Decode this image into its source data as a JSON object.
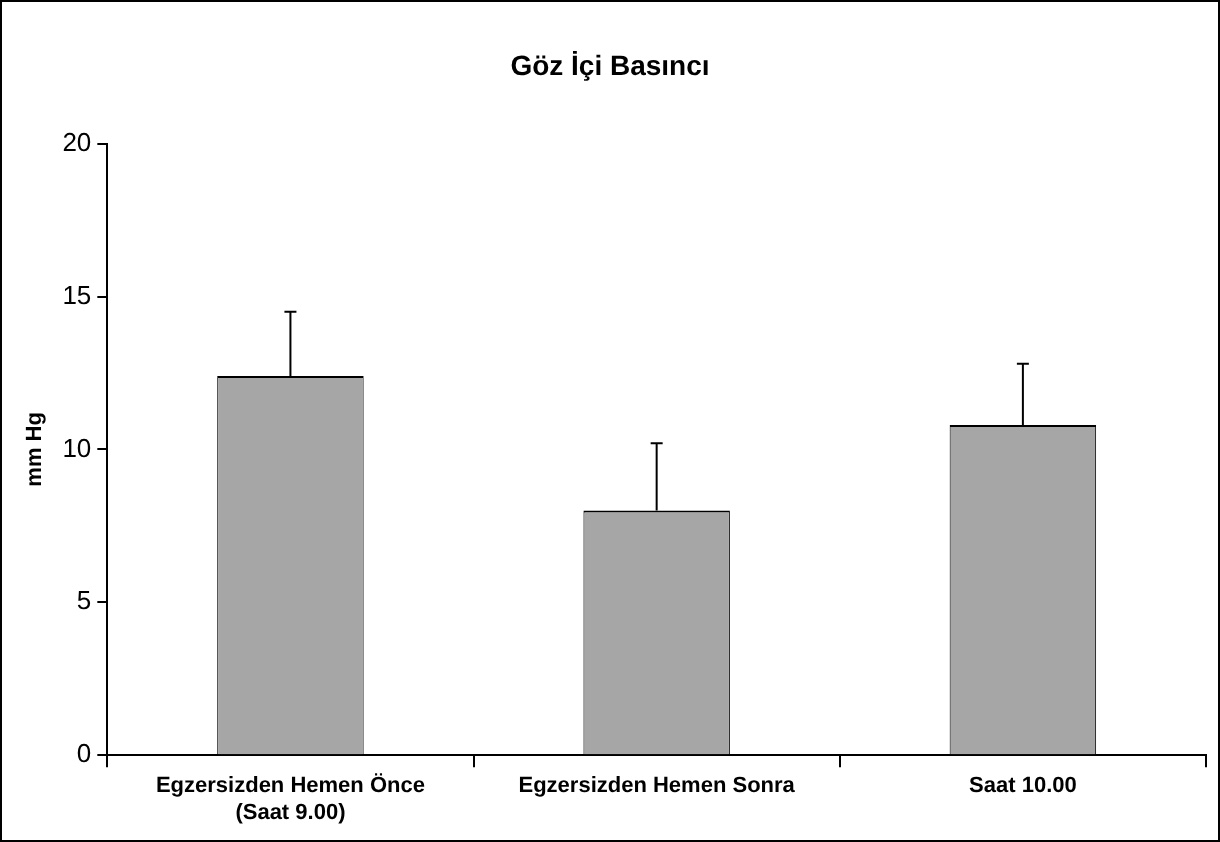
{
  "chart_data": {
    "type": "bar",
    "title": "Göz İçi Basıncı",
    "ylabel": "mm Hg",
    "categories": [
      "Egzersizden Hemen Önce\n(Saat 9.00)",
      "Egzersizden Hemen Sonra",
      "Saat 10.00"
    ],
    "values": [
      12.4,
      8.0,
      10.8
    ],
    "color": "#a6a6a6",
    "errors": [
      [
        12.4,
        14.5
      ],
      [
        8.0,
        10.2
      ],
      [
        10.8,
        12.8
      ]
    ],
    "ylim": [
      0,
      20
    ],
    "yticks": [
      0,
      5,
      10,
      15,
      20
    ],
    "grid": false,
    "legend": false
  }
}
